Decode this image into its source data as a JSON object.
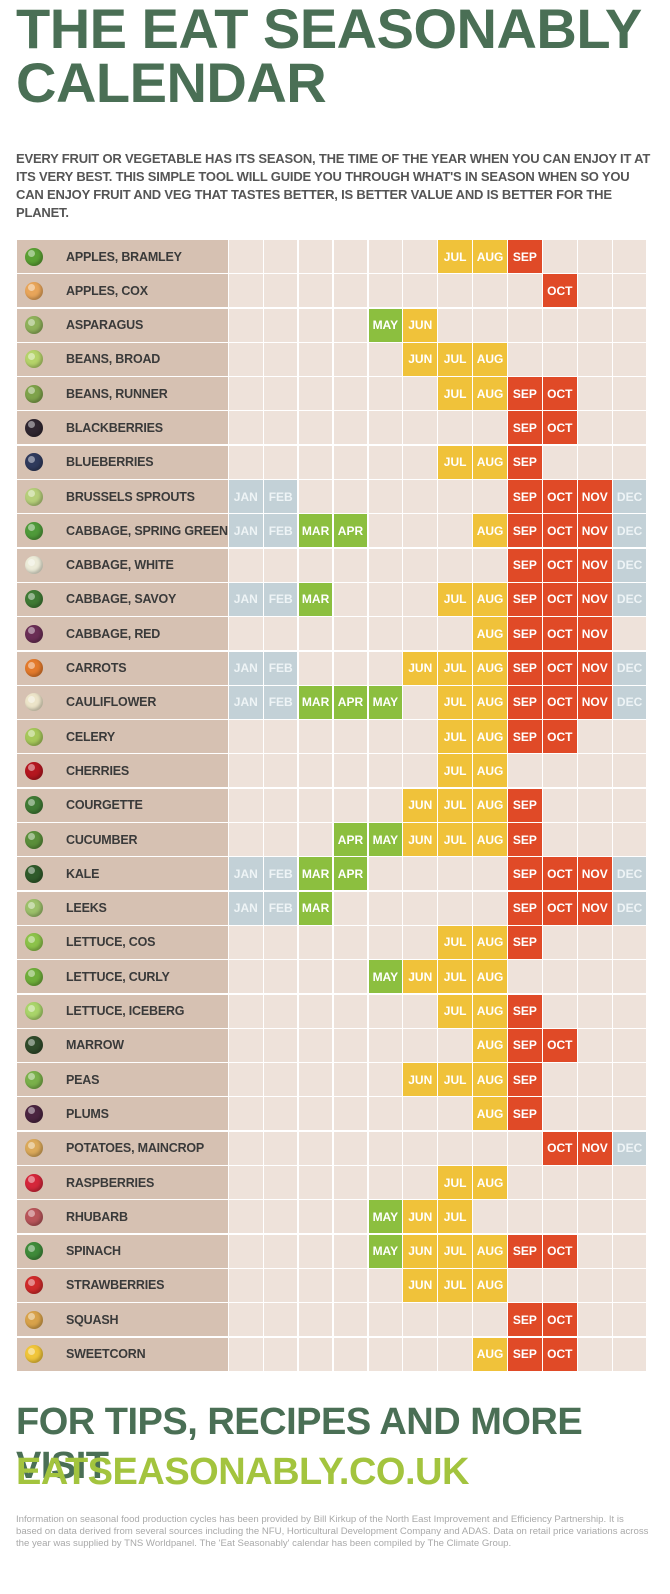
{
  "header": {
    "title_line1": "THE EAT SEASONABLY",
    "title_line2": "CALENDAR",
    "intro": "EVERY FRUIT OR VEGETABLE HAS ITS SEASON, THE TIME OF THE YEAR WHEN YOU CAN ENJOY IT AT ITS VERY BEST.  THIS SIMPLE TOOL WILL GUIDE YOU THROUGH WHAT'S IN SEASON WHEN SO YOU CAN ENJOY FRUIT AND VEG THAT TASTES BETTER, IS BETTER VALUE AND IS BETTER FOR THE PLANET."
  },
  "colors": {
    "title_green": "#4a6f55",
    "url_green": "#a3c43e",
    "name_bg": "#d6c1b2",
    "empty_cell": "#eee2da",
    "winter": "#c3d1d7",
    "spring": "#8cbf3f",
    "summer": "#f0c23a",
    "autumn": "#e04a27"
  },
  "months": [
    "JAN",
    "FEB",
    "MAR",
    "APR",
    "MAY",
    "JUN",
    "JUL",
    "AUG",
    "SEP",
    "OCT",
    "NOV",
    "DEC"
  ],
  "month_season": [
    "w",
    "w",
    "s",
    "s",
    "s",
    "u",
    "u",
    "u",
    "a",
    "a",
    "a",
    "w"
  ],
  "produce": [
    {
      "name": "APPLES, BRAMLEY",
      "icon": "apple-icon",
      "color": "#5aa033",
      "months": [
        7,
        8,
        9
      ]
    },
    {
      "name": "APPLES, COX",
      "icon": "apple-icon",
      "color": "#e8a55a",
      "months": [
        10
      ]
    },
    {
      "name": "ASPARAGUS",
      "icon": "asparagus-icon",
      "color": "#8fb15a",
      "months": [
        5,
        6
      ]
    },
    {
      "name": "BEANS, BROAD",
      "icon": "bean-icon",
      "color": "#b5d36a",
      "months": [
        6,
        7,
        8
      ]
    },
    {
      "name": "BEANS, RUNNER",
      "icon": "bean-icon",
      "color": "#7ea24a",
      "months": [
        7,
        8,
        9,
        10
      ]
    },
    {
      "name": "BLACKBERRIES",
      "icon": "berry-icon",
      "color": "#2f2630",
      "months": [
        9,
        10
      ]
    },
    {
      "name": "BLUEBERRIES",
      "icon": "berry-icon",
      "color": "#2f3a5c",
      "months": [
        7,
        8,
        9
      ]
    },
    {
      "name": "BRUSSELS SPROUTS",
      "icon": "sprout-icon",
      "color": "#b6cf7a",
      "months": [
        1,
        2,
        9,
        10,
        11,
        12
      ]
    },
    {
      "name": "CABBAGE, SPRING GREEN",
      "icon": "cabbage-icon",
      "color": "#4f9a3a",
      "months": [
        1,
        2,
        3,
        4,
        8,
        9,
        10,
        11,
        12
      ]
    },
    {
      "name": "CABBAGE, WHITE",
      "icon": "cabbage-icon",
      "color": "#ecebd8",
      "months": [
        9,
        10,
        11,
        12
      ]
    },
    {
      "name": "CABBAGE, SAVOY",
      "icon": "cabbage-icon",
      "color": "#3f7a34",
      "months": [
        1,
        2,
        3,
        7,
        8,
        9,
        10,
        11,
        12
      ]
    },
    {
      "name": "CABBAGE, RED",
      "icon": "cabbage-icon",
      "color": "#6a2e55",
      "months": [
        8,
        9,
        10,
        11
      ]
    },
    {
      "name": "CARROTS",
      "icon": "carrot-icon",
      "color": "#e37a2c",
      "months": [
        1,
        2,
        6,
        7,
        8,
        9,
        10,
        11,
        12
      ]
    },
    {
      "name": "CAULIFLOWER",
      "icon": "cauliflower-icon",
      "color": "#ece4c9",
      "months": [
        1,
        2,
        3,
        4,
        5,
        7,
        8,
        9,
        10,
        11,
        12
      ]
    },
    {
      "name": "CELERY",
      "icon": "celery-icon",
      "color": "#a6c85a",
      "months": [
        7,
        8,
        9,
        10
      ]
    },
    {
      "name": "CHERRIES",
      "icon": "cherry-icon",
      "color": "#b4161f",
      "months": [
        7,
        8
      ]
    },
    {
      "name": "COURGETTE",
      "icon": "courgette-icon",
      "color": "#3f7a34",
      "months": [
        6,
        7,
        8,
        9
      ]
    },
    {
      "name": "CUCUMBER",
      "icon": "cucumber-icon",
      "color": "#5a8e3a",
      "months": [
        4,
        5,
        6,
        7,
        8,
        9
      ]
    },
    {
      "name": "KALE",
      "icon": "kale-icon",
      "color": "#2f5a2a",
      "months": [
        1,
        2,
        3,
        4,
        9,
        10,
        11,
        12
      ]
    },
    {
      "name": "LEEKS",
      "icon": "leek-icon",
      "color": "#9cc06a",
      "months": [
        1,
        2,
        3,
        9,
        10,
        11,
        12
      ]
    },
    {
      "name": "LETTUCE, COS",
      "icon": "lettuce-icon",
      "color": "#8cc24a",
      "months": [
        7,
        8,
        9
      ]
    },
    {
      "name": "LETTUCE, CURLY",
      "icon": "lettuce-icon",
      "color": "#6fae3a",
      "months": [
        5,
        6,
        7,
        8
      ]
    },
    {
      "name": "LETTUCE, ICEBERG",
      "icon": "lettuce-icon",
      "color": "#a9d46a",
      "months": [
        7,
        8,
        9
      ]
    },
    {
      "name": "MARROW",
      "icon": "marrow-icon",
      "color": "#2f4a2a",
      "months": [
        8,
        9,
        10
      ]
    },
    {
      "name": "PEAS",
      "icon": "pea-icon",
      "color": "#7ab04a",
      "months": [
        6,
        7,
        8,
        9
      ]
    },
    {
      "name": "PLUMS",
      "icon": "plum-icon",
      "color": "#4a2440",
      "months": [
        8,
        9
      ]
    },
    {
      "name": "POTATOES, MAINCROP",
      "icon": "potato-icon",
      "color": "#dba95a",
      "months": [
        10,
        11,
        12
      ]
    },
    {
      "name": "RASPBERRIES",
      "icon": "raspberry-icon",
      "color": "#d4263a",
      "months": [
        7,
        8
      ]
    },
    {
      "name": "RHUBARB",
      "icon": "rhubarb-icon",
      "color": "#b8555a",
      "months": [
        5,
        6,
        7
      ]
    },
    {
      "name": "SPINACH",
      "icon": "spinach-icon",
      "color": "#3f8a3a",
      "months": [
        5,
        6,
        7,
        8,
        9,
        10
      ]
    },
    {
      "name": "STRAWBERRIES",
      "icon": "strawberry-icon",
      "color": "#cf2a2a",
      "months": [
        6,
        7,
        8
      ]
    },
    {
      "name": "SQUASH",
      "icon": "squash-icon",
      "color": "#d8a24a",
      "months": [
        9,
        10
      ]
    },
    {
      "name": "SWEETCORN",
      "icon": "sweetcorn-icon",
      "color": "#f0c53a",
      "months": [
        8,
        9,
        10
      ]
    }
  ],
  "footer": {
    "visit": "FOR TIPS, RECIPES AND MORE VISIT",
    "url": "EATSEASONABLY.CO.UK",
    "note": "Information on seasonal food production cycles has been provided by Bill Kirkup of the North East Improvement and Efficiency Partnership.  It is based on data derived from several sources including the NFU, Horticultural Development Company and ADAS.  Data on retail price variations across the year was supplied by TNS Worldpanel.  The 'Eat Seasonably' calendar has been compiled by The Climate Group."
  }
}
